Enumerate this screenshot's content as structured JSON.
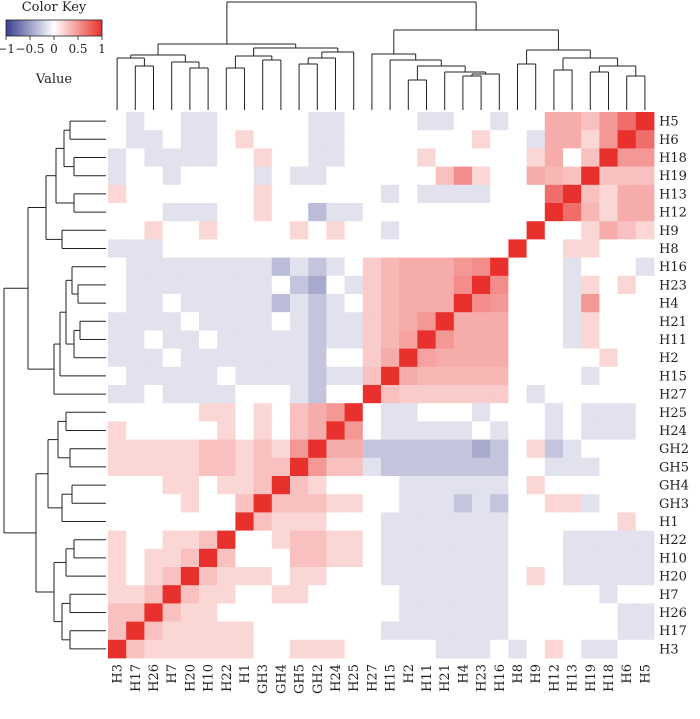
{
  "chart_data": {
    "type": "heatmap",
    "title": "",
    "color_key": {
      "title": "Color Key",
      "label": "Value",
      "ticks": [
        "−1",
        "−0.5",
        "0",
        "0.5",
        "1"
      ],
      "range": [
        -1,
        1
      ],
      "low_color": "#3b3f8f",
      "mid_color": "#ffffff",
      "high_color": "#e8302c"
    },
    "row_labels": [
      "H5",
      "H6",
      "H18",
      "H19",
      "H13",
      "H12",
      "H9",
      "H8",
      "H16",
      "H23",
      "H4",
      "H21",
      "H11",
      "H2",
      "H15",
      "H27",
      "H25",
      "H24",
      "GH2",
      "GH5",
      "GH4",
      "GH3",
      "H1",
      "H22",
      "H10",
      "H20",
      "H7",
      "H26",
      "H17",
      "H3"
    ],
    "col_labels": [
      "H3",
      "H17",
      "H26",
      "H7",
      "H20",
      "H10",
      "H22",
      "H1",
      "GH3",
      "GH4",
      "GH5",
      "GH2",
      "H24",
      "H25",
      "H27",
      "H15",
      "H2",
      "H11",
      "H21",
      "H4",
      "H23",
      "H16",
      "H8",
      "H9",
      "H12",
      "H13",
      "H19",
      "H18",
      "H6",
      "H5"
    ],
    "values": [
      [
        0,
        -0.15,
        0,
        0,
        -0.15,
        -0.15,
        0,
        0,
        0,
        0,
        0,
        -0.15,
        -0.15,
        0,
        0,
        0,
        0,
        -0.15,
        -0.15,
        0,
        0,
        -0.15,
        0,
        0,
        0.4,
        0.4,
        0.3,
        0.5,
        0.7,
        1
      ],
      [
        0,
        -0.15,
        -0.15,
        0,
        -0.15,
        -0.15,
        0,
        0.2,
        0,
        0,
        0,
        -0.15,
        -0.15,
        0,
        0,
        0,
        0,
        0,
        0,
        0,
        0.2,
        0,
        0,
        -0.15,
        0.4,
        0.4,
        0.2,
        0.5,
        1,
        0.7
      ],
      [
        -0.15,
        0,
        -0.15,
        -0.15,
        -0.15,
        -0.15,
        0,
        0,
        0.2,
        0,
        0,
        -0.15,
        -0.15,
        0,
        0,
        0,
        0,
        0.2,
        0,
        0,
        0,
        0,
        0,
        0.2,
        0.4,
        0,
        0.3,
        1,
        0.5,
        0.5
      ],
      [
        -0.15,
        0,
        0,
        -0.15,
        0,
        0,
        0,
        0,
        -0.15,
        0,
        -0.15,
        -0.15,
        0,
        0,
        0,
        0,
        0,
        0,
        0.3,
        0.55,
        0.2,
        0,
        0,
        0.4,
        0.35,
        0.3,
        1,
        0.3,
        0.3,
        0.3
      ],
      [
        0.2,
        0,
        0,
        0,
        0,
        0,
        0,
        0,
        0.2,
        0,
        0,
        0,
        0,
        0,
        0,
        -0.15,
        0,
        -0.15,
        -0.15,
        -0.15,
        -0.15,
        0,
        0,
        0,
        0.7,
        1,
        0.3,
        0.2,
        0.4,
        0.4
      ],
      [
        0,
        0,
        0,
        -0.15,
        -0.15,
        -0.15,
        0,
        0,
        0.2,
        0,
        0,
        -0.35,
        -0.15,
        -0.15,
        0,
        0,
        0,
        0,
        0,
        0,
        0,
        0,
        0,
        0,
        1,
        0.7,
        0.35,
        0.2,
        0.4,
        0.4
      ],
      [
        0,
        0,
        0.2,
        0,
        0,
        0.2,
        0,
        0,
        0,
        0,
        0.2,
        0,
        0.2,
        0,
        0,
        -0.15,
        0,
        0,
        0,
        0,
        0,
        0,
        0,
        1,
        0,
        0,
        0.2,
        0.4,
        0.3,
        0.2
      ],
      [
        -0.15,
        -0.15,
        -0.15,
        0,
        0,
        0,
        0,
        0,
        0,
        0,
        0,
        0,
        0,
        0,
        0,
        0,
        0,
        0,
        0,
        0,
        0,
        0,
        1,
        0,
        0,
        0.2,
        0.2,
        0,
        0,
        0
      ],
      [
        0,
        -0.15,
        -0.15,
        -0.15,
        -0.15,
        -0.15,
        -0.15,
        -0.15,
        -0.15,
        -0.35,
        -0.15,
        -0.3,
        -0.15,
        0,
        0.25,
        0.35,
        0.4,
        0.4,
        0.4,
        0.5,
        0.55,
        1,
        0,
        0,
        0,
        -0.15,
        0,
        0,
        0,
        -0.15
      ],
      [
        0,
        -0.15,
        -0.15,
        -0.15,
        -0.15,
        -0.15,
        -0.15,
        -0.15,
        -0.15,
        0,
        -0.3,
        -0.45,
        0,
        -0.15,
        0.25,
        0.35,
        0.4,
        0.4,
        0.4,
        0.55,
        1,
        0.55,
        0,
        0,
        0,
        -0.15,
        0.2,
        0,
        0.2,
        0
      ],
      [
        0,
        -0.15,
        -0.15,
        0,
        -0.15,
        -0.15,
        -0.15,
        -0.15,
        -0.15,
        -0.35,
        -0.15,
        -0.3,
        -0.15,
        0,
        0.25,
        0.35,
        0.4,
        0.4,
        0.4,
        1,
        0.55,
        0.5,
        0,
        0,
        0,
        -0.15,
        0.5,
        0,
        0,
        0
      ],
      [
        -0.15,
        -0.15,
        -0.15,
        -0.15,
        0,
        -0.15,
        -0.15,
        -0.15,
        -0.15,
        0,
        -0.15,
        -0.3,
        -0.15,
        -0.15,
        0.25,
        0.35,
        0.4,
        0.5,
        1,
        0.4,
        0.4,
        0.4,
        0,
        0,
        0,
        -0.15,
        0.2,
        0,
        0,
        0
      ],
      [
        -0.15,
        -0.15,
        0,
        -0.15,
        -0.15,
        0,
        -0.15,
        -0.15,
        -0.15,
        -0.15,
        -0.15,
        -0.3,
        -0.15,
        -0.15,
        0.25,
        0.35,
        0.45,
        1,
        0.5,
        0.4,
        0.4,
        0.4,
        0,
        0,
        0,
        -0.15,
        0.2,
        0,
        0,
        0
      ],
      [
        -0.15,
        -0.15,
        -0.15,
        0,
        -0.15,
        -0.15,
        -0.15,
        -0.15,
        -0.15,
        -0.15,
        -0.15,
        -0.3,
        0,
        0,
        0.25,
        0.4,
        1,
        0.45,
        0.4,
        0.4,
        0.4,
        0.4,
        0,
        0,
        0,
        0,
        0,
        0.2,
        0,
        0
      ],
      [
        0,
        -0.15,
        -0.15,
        -0.15,
        -0.15,
        -0.15,
        0,
        -0.15,
        -0.15,
        -0.15,
        -0.15,
        -0.3,
        -0.15,
        -0.15,
        0.3,
        1,
        0.4,
        0.35,
        0.35,
        0.35,
        0.35,
        0.35,
        0,
        0,
        0,
        0,
        -0.15,
        0,
        0,
        0
      ],
      [
        -0.15,
        -0.15,
        0,
        -0.15,
        -0.15,
        -0.15,
        -0.15,
        0,
        0,
        0,
        -0.15,
        -0.3,
        0,
        0,
        1,
        0.3,
        0.25,
        0.25,
        0.25,
        0.25,
        0.25,
        0.25,
        0,
        -0.15,
        0,
        0,
        0,
        0,
        0,
        0
      ],
      [
        0,
        0,
        0,
        0,
        0,
        0.2,
        0.2,
        0,
        0.2,
        0,
        0.3,
        0.4,
        0.5,
        1,
        0,
        -0.15,
        -0.15,
        0,
        0,
        0,
        -0.15,
        0,
        0,
        0,
        -0.15,
        0,
        -0.15,
        -0.15,
        -0.15,
        0
      ],
      [
        0.2,
        0,
        0,
        0,
        0,
        0,
        0.2,
        0,
        0.2,
        0,
        0.3,
        0.4,
        1,
        0.5,
        0,
        -0.15,
        -0.15,
        -0.15,
        -0.15,
        -0.15,
        0,
        -0.15,
        0,
        0,
        -0.15,
        0,
        -0.15,
        -0.15,
        -0.15,
        0
      ],
      [
        0.2,
        0.2,
        0.2,
        0.2,
        0.2,
        0.3,
        0.3,
        0.2,
        0.3,
        0.2,
        0.5,
        1,
        0.4,
        0.4,
        -0.3,
        -0.3,
        -0.3,
        -0.3,
        -0.3,
        -0.3,
        -0.45,
        -0.3,
        0,
        0.2,
        -0.3,
        -0.15,
        0,
        0,
        0,
        0
      ],
      [
        0.2,
        0.2,
        0.2,
        0.2,
        0.2,
        0.3,
        0.3,
        0.2,
        0.3,
        0.3,
        1,
        0.5,
        0.3,
        0.3,
        -0.15,
        -0.3,
        -0.3,
        -0.3,
        -0.3,
        -0.3,
        -0.3,
        -0.3,
        0,
        0,
        -0.15,
        -0.15,
        -0.15,
        0,
        0,
        0
      ],
      [
        0,
        0,
        0,
        0.2,
        0.2,
        0,
        0.2,
        0.2,
        0.3,
        1,
        0.3,
        0.2,
        0,
        0,
        0,
        0,
        -0.15,
        -0.15,
        -0.15,
        -0.15,
        -0.15,
        -0.15,
        0,
        0.2,
        0,
        0,
        0,
        0,
        0,
        0
      ],
      [
        0,
        0,
        0,
        0,
        0.2,
        0,
        0,
        0.3,
        1,
        0.3,
        0.3,
        0.3,
        0.2,
        0.2,
        0,
        0,
        -0.15,
        -0.15,
        -0.15,
        -0.3,
        -0.15,
        -0.3,
        0,
        0,
        0.2,
        0.2,
        -0.15,
        0,
        0,
        0
      ],
      [
        0,
        0,
        0,
        0,
        0,
        0,
        0,
        1,
        0.3,
        0.2,
        0.2,
        0.2,
        0,
        0,
        0,
        -0.15,
        -0.15,
        -0.15,
        -0.15,
        -0.15,
        -0.15,
        -0.15,
        0,
        0,
        0,
        0,
        0,
        0,
        0.2,
        0
      ],
      [
        0.2,
        0,
        0,
        0.2,
        0.2,
        0.3,
        1,
        0,
        0,
        0.2,
        0.3,
        0.3,
        0.2,
        0.2,
        0,
        -0.15,
        -0.15,
        -0.15,
        -0.15,
        -0.15,
        -0.15,
        -0.15,
        0,
        0,
        0,
        -0.15,
        -0.15,
        -0.15,
        -0.15,
        -0.15
      ],
      [
        0.2,
        0,
        0.2,
        0.2,
        0.3,
        1,
        0.3,
        0,
        0,
        0,
        0.3,
        0.3,
        0.2,
        0.2,
        0,
        -0.15,
        -0.15,
        -0.15,
        -0.15,
        -0.15,
        -0.15,
        -0.15,
        0,
        0,
        0,
        -0.15,
        -0.15,
        -0.15,
        -0.15,
        -0.15
      ],
      [
        0.2,
        0,
        0.2,
        0.3,
        1,
        0.3,
        0.2,
        0.2,
        0.2,
        0,
        0.2,
        0.2,
        0,
        0,
        0,
        -0.15,
        -0.15,
        -0.15,
        -0.15,
        -0.15,
        -0.15,
        -0.15,
        0,
        0.2,
        0,
        -0.15,
        -0.15,
        -0.15,
        -0.15,
        -0.15
      ],
      [
        0.2,
        0.2,
        0.3,
        1,
        0.3,
        0.2,
        0.2,
        0,
        0,
        0.2,
        0.2,
        0,
        0,
        0,
        0,
        0,
        -0.15,
        -0.15,
        -0.15,
        -0.15,
        -0.15,
        -0.15,
        0,
        0,
        0,
        0,
        0,
        -0.15,
        0,
        0
      ],
      [
        0.3,
        0.3,
        1,
        0.3,
        0.2,
        0.2,
        0,
        0,
        0,
        0,
        0,
        0,
        0,
        0,
        0,
        0,
        -0.15,
        -0.15,
        -0.15,
        -0.15,
        -0.15,
        -0.15,
        0,
        0,
        0,
        0,
        0,
        0,
        -0.15,
        -0.15
      ],
      [
        0.3,
        1,
        0.3,
        0.2,
        0.2,
        0.2,
        0.2,
        0.2,
        0,
        0,
        0,
        0,
        0,
        0,
        0,
        -0.15,
        -0.15,
        -0.15,
        -0.15,
        -0.15,
        -0.15,
        -0.15,
        0,
        0,
        0,
        0,
        0,
        0,
        -0.15,
        -0.15
      ],
      [
        1,
        0.3,
        0.2,
        0.2,
        0.2,
        0.2,
        0.2,
        0.2,
        0,
        0,
        0.2,
        0.2,
        0.2,
        0,
        0,
        0,
        0,
        0,
        -0.15,
        -0.15,
        -0.15,
        0,
        -0.15,
        0,
        0.2,
        0,
        -0.15,
        -0.15,
        0,
        0
      ]
    ]
  }
}
